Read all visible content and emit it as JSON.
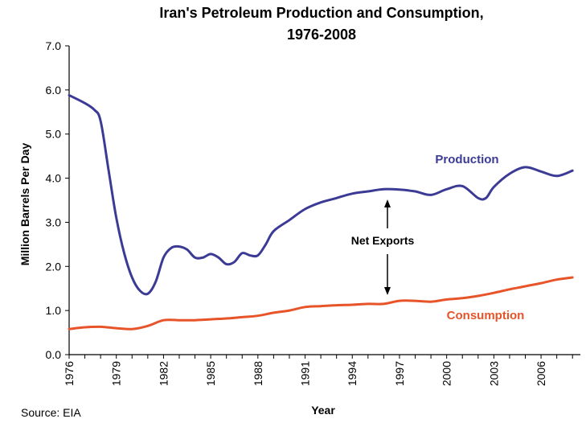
{
  "chart_data": {
    "type": "line",
    "title_line1": "Iran's Petroleum Production and Consumption,",
    "title_line2": "1976-2008",
    "xlabel": "Year",
    "ylabel": "Million Barrels Per Day",
    "xlim": [
      1976,
      2008.5
    ],
    "ylim": [
      0,
      7
    ],
    "y_ticks": [
      "0.0",
      "1.0",
      "2.0",
      "3.0",
      "4.0",
      "5.0",
      "6.0",
      "7.0"
    ],
    "x_ticks": [
      "1976",
      "1979",
      "1982",
      "1985",
      "1988",
      "1991",
      "1994",
      "1997",
      "2000",
      "2003",
      "2006"
    ],
    "grid": false,
    "series": [
      {
        "name": "Production",
        "color": "#3b3b96",
        "x": [
          1976,
          1977,
          1977.6,
          1978,
          1978.5,
          1979,
          1979.5,
          1980,
          1980.5,
          1981,
          1981.5,
          1982,
          1982.5,
          1983,
          1983.5,
          1984,
          1984.5,
          1985,
          1985.5,
          1986,
          1986.5,
          1987,
          1987.5,
          1988,
          1988.5,
          1989,
          1990,
          1991,
          1992,
          1993,
          1994,
          1995,
          1996,
          1997,
          1998,
          1999,
          2000,
          2001,
          2002,
          2002.5,
          2003,
          2004,
          2005,
          2006,
          2007,
          2008
        ],
        "values": [
          5.88,
          5.7,
          5.55,
          5.3,
          4.2,
          3.1,
          2.3,
          1.75,
          1.45,
          1.38,
          1.65,
          2.2,
          2.42,
          2.45,
          2.38,
          2.2,
          2.2,
          2.28,
          2.2,
          2.05,
          2.1,
          2.3,
          2.25,
          2.25,
          2.5,
          2.8,
          3.05,
          3.3,
          3.45,
          3.55,
          3.65,
          3.7,
          3.75,
          3.74,
          3.7,
          3.62,
          3.75,
          3.82,
          3.55,
          3.55,
          3.8,
          4.1,
          4.25,
          4.15,
          4.05,
          4.17
        ]
      },
      {
        "name": "Consumption",
        "color": "#e8542a",
        "x": [
          1976,
          1977,
          1978,
          1979,
          1980,
          1981,
          1982,
          1983,
          1984,
          1985,
          1986,
          1987,
          1988,
          1989,
          1990,
          1991,
          1992,
          1993,
          1994,
          1995,
          1996,
          1997,
          1998,
          1999,
          2000,
          2001,
          2002,
          2003,
          2004,
          2005,
          2006,
          2007,
          2008
        ],
        "values": [
          0.58,
          0.62,
          0.63,
          0.6,
          0.58,
          0.65,
          0.78,
          0.78,
          0.78,
          0.8,
          0.82,
          0.85,
          0.88,
          0.95,
          1.0,
          1.08,
          1.1,
          1.12,
          1.13,
          1.15,
          1.15,
          1.22,
          1.22,
          1.2,
          1.25,
          1.28,
          1.33,
          1.4,
          1.48,
          1.55,
          1.62,
          1.7,
          1.75
        ]
      }
    ],
    "annotation": "Net Exports",
    "source": "Source: EIA"
  }
}
